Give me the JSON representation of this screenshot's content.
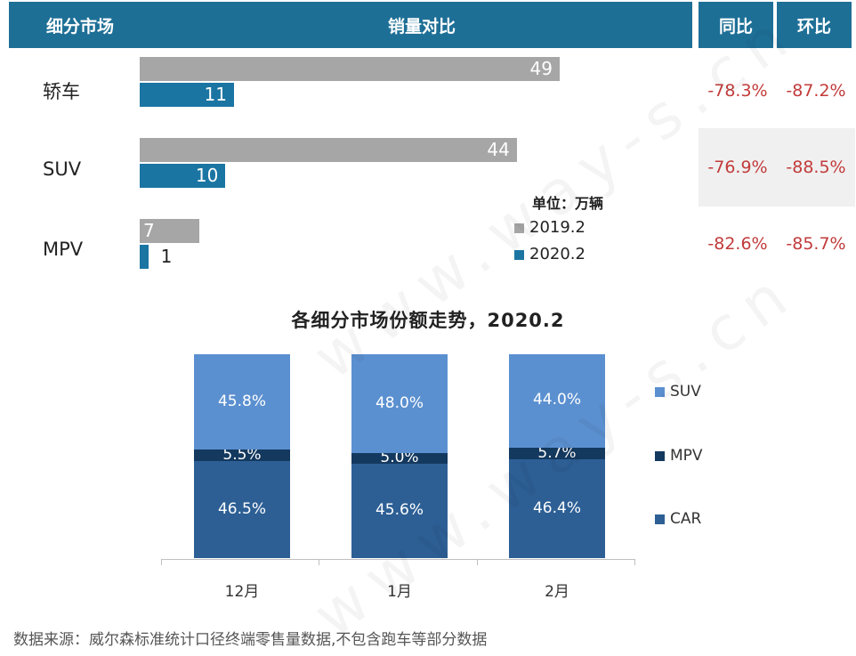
{
  "header": {
    "segment_col": "细分市场",
    "compare_col": "销量对比",
    "yoy_col": "同比",
    "mom_col": "环比"
  },
  "table": {
    "unit_label": "单位：万辆",
    "legend": [
      "2019.2",
      "2020.2"
    ],
    "rows": [
      {
        "label": "轿车",
        "v2019": 49,
        "v2020": 11,
        "yoy": "-78.3%",
        "mom": "-87.2%"
      },
      {
        "label": "SUV",
        "v2019": 44,
        "v2020": 10,
        "yoy": "-76.9%",
        "mom": "-88.5%"
      },
      {
        "label": "MPV",
        "v2019": 7,
        "v2020": 1,
        "yoy": "-82.6%",
        "mom": "-85.7%"
      }
    ]
  },
  "chart_data": [
    {
      "type": "bar",
      "orientation": "horizontal",
      "categories": [
        "轿车",
        "SUV",
        "MPV"
      ],
      "series": [
        {
          "name": "2019.2",
          "values": [
            49,
            44,
            7
          ],
          "color": "#a6a6a6"
        },
        {
          "name": "2020.2",
          "values": [
            11,
            10,
            1
          ],
          "color": "#1b75a3"
        }
      ],
      "title": "销量对比",
      "unit": "单位：万辆",
      "xlim": [
        0,
        49
      ]
    },
    {
      "type": "bar",
      "stacked": true,
      "title": "各细分市场份额走势，2020.2",
      "categories": [
        "12月",
        "1月",
        "2月"
      ],
      "series": [
        {
          "name": "CAR",
          "values": [
            46.5,
            45.6,
            46.4
          ],
          "labels": [
            "46.5%",
            "45.6%",
            "46.4%"
          ],
          "color": "#2d5f95"
        },
        {
          "name": "MPV",
          "values": [
            5.5,
            5.0,
            5.7
          ],
          "labels": [
            "5.5%",
            "5.0%",
            "5.7%"
          ],
          "color": "#14395f"
        },
        {
          "name": "SUV",
          "values": [
            45.8,
            48.0,
            44.0
          ],
          "labels": [
            "45.8%",
            "48.0%",
            "44.0%"
          ],
          "color": "#5b90d0"
        }
      ],
      "legend_position": "right",
      "legend": [
        "SUV",
        "MPV",
        "CAR"
      ]
    }
  ],
  "source": "数据来源：威尔森标准统计口径终端零售量数据,不包含跑车等部分数据",
  "watermark": "www.way-s.cn"
}
